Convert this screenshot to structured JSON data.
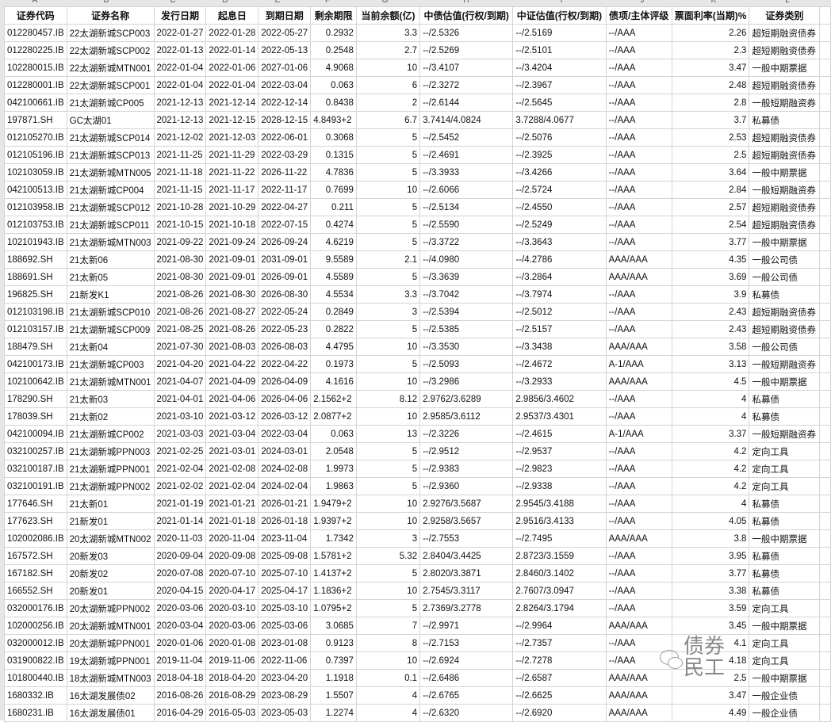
{
  "column_letters": [
    "A",
    "B",
    "C",
    "D",
    "E",
    "F",
    "G",
    "H",
    "I",
    "J",
    "K",
    "L"
  ],
  "headers": [
    "证券代码",
    "证券名称",
    "发行日期",
    "起息日",
    "到期日期",
    "剩余期限",
    "当前余额(亿)",
    "中债估值(行权/到期)",
    "中证估值(行权/到期)",
    "债项/主体评级",
    "票面利率(当期)%",
    "证券类别"
  ],
  "rows": [
    [
      "012280457.IB",
      "22太湖新城SCP003",
      "2022-01-27",
      "2022-01-28",
      "2022-05-27",
      "0.2932",
      "3.3",
      "--/2.5326",
      "--/2.5169",
      "--/AAA",
      "2.26",
      "超短期融资债券"
    ],
    [
      "012280225.IB",
      "22太湖新城SCP002",
      "2022-01-13",
      "2022-01-14",
      "2022-05-13",
      "0.2548",
      "2.7",
      "--/2.5269",
      "--/2.5101",
      "--/AAA",
      "2.3",
      "超短期融资债券"
    ],
    [
      "102280015.IB",
      "22太湖新城MTN001",
      "2022-01-04",
      "2022-01-06",
      "2027-01-06",
      "4.9068",
      "10",
      "--/3.4107",
      "--/3.4204",
      "--/AAA",
      "3.47",
      "一般中期票据"
    ],
    [
      "012280001.IB",
      "22太湖新城SCP001",
      "2022-01-04",
      "2022-01-04",
      "2022-03-04",
      "0.063",
      "6",
      "--/2.3272",
      "--/2.3967",
      "--/AAA",
      "2.48",
      "超短期融资债券"
    ],
    [
      "042100661.IB",
      "21太湖新城CP005",
      "2021-12-13",
      "2021-12-14",
      "2022-12-14",
      "0.8438",
      "2",
      "--/2.6144",
      "--/2.5645",
      "--/AAA",
      "2.8",
      "一般短期融资券"
    ],
    [
      "197871.SH",
      "GC太湖01",
      "2021-12-13",
      "2021-12-15",
      "2028-12-15",
      "4.8493+2",
      "6.7",
      "3.7414/4.0824",
      "3.7288/4.0677",
      "--/AAA",
      "3.7",
      "私募债"
    ],
    [
      "012105270.IB",
      "21太湖新城SCP014",
      "2021-12-02",
      "2021-12-03",
      "2022-06-01",
      "0.3068",
      "5",
      "--/2.5452",
      "--/2.5076",
      "--/AAA",
      "2.53",
      "超短期融资债券"
    ],
    [
      "012105196.IB",
      "21太湖新城SCP013",
      "2021-11-25",
      "2021-11-29",
      "2022-03-29",
      "0.1315",
      "5",
      "--/2.4691",
      "--/2.3925",
      "--/AAA",
      "2.5",
      "超短期融资债券"
    ],
    [
      "102103059.IB",
      "21太湖新城MTN005",
      "2021-11-18",
      "2021-11-22",
      "2026-11-22",
      "4.7836",
      "5",
      "--/3.3933",
      "--/3.4266",
      "--/AAA",
      "3.64",
      "一般中期票据"
    ],
    [
      "042100513.IB",
      "21太湖新城CP004",
      "2021-11-15",
      "2021-11-17",
      "2022-11-17",
      "0.7699",
      "10",
      "--/2.6066",
      "--/2.5724",
      "--/AAA",
      "2.84",
      "一般短期融资券"
    ],
    [
      "012103958.IB",
      "21太湖新城SCP012",
      "2021-10-28",
      "2021-10-29",
      "2022-04-27",
      "0.211",
      "5",
      "--/2.5134",
      "--/2.4550",
      "--/AAA",
      "2.57",
      "超短期融资债券"
    ],
    [
      "012103753.IB",
      "21太湖新城SCP011",
      "2021-10-15",
      "2021-10-18",
      "2022-07-15",
      "0.4274",
      "5",
      "--/2.5590",
      "--/2.5249",
      "--/AAA",
      "2.54",
      "超短期融资债券"
    ],
    [
      "102101943.IB",
      "21太湖新城MTN003",
      "2021-09-22",
      "2021-09-24",
      "2026-09-24",
      "4.6219",
      "5",
      "--/3.3722",
      "--/3.3643",
      "--/AAA",
      "3.77",
      "一般中期票据"
    ],
    [
      "188692.SH",
      "21太新06",
      "2021-08-30",
      "2021-09-01",
      "2031-09-01",
      "9.5589",
      "2.1",
      "--/4.0980",
      "--/4.2786",
      "AAA/AAA",
      "4.35",
      "一般公司债"
    ],
    [
      "188691.SH",
      "21太新05",
      "2021-08-30",
      "2021-09-01",
      "2026-09-01",
      "4.5589",
      "5",
      "--/3.3639",
      "--/3.2864",
      "AAA/AAA",
      "3.69",
      "一般公司债"
    ],
    [
      "196825.SH",
      "21新发K1",
      "2021-08-26",
      "2021-08-30",
      "2026-08-30",
      "4.5534",
      "3.3",
      "--/3.7042",
      "--/3.7974",
      "--/AAA",
      "3.9",
      "私募债"
    ],
    [
      "012103198.IB",
      "21太湖新城SCP010",
      "2021-08-26",
      "2021-08-27",
      "2022-05-24",
      "0.2849",
      "3",
      "--/2.5394",
      "--/2.5012",
      "--/AAA",
      "2.43",
      "超短期融资债券"
    ],
    [
      "012103157.IB",
      "21太湖新城SCP009",
      "2021-08-25",
      "2021-08-26",
      "2022-05-23",
      "0.2822",
      "5",
      "--/2.5385",
      "--/2.5157",
      "--/AAA",
      "2.43",
      "超短期融资债券"
    ],
    [
      "188479.SH",
      "21太新04",
      "2021-07-30",
      "2021-08-03",
      "2026-08-03",
      "4.4795",
      "10",
      "--/3.3530",
      "--/3.3438",
      "AAA/AAA",
      "3.58",
      "一般公司债"
    ],
    [
      "042100173.IB",
      "21太湖新城CP003",
      "2021-04-20",
      "2021-04-22",
      "2022-04-22",
      "0.1973",
      "5",
      "--/2.5093",
      "--/2.4672",
      "A-1/AAA",
      "3.13",
      "一般短期融资券"
    ],
    [
      "102100642.IB",
      "21太湖新城MTN001",
      "2021-04-07",
      "2021-04-09",
      "2026-04-09",
      "4.1616",
      "10",
      "--/3.2986",
      "--/3.2933",
      "AAA/AAA",
      "4.5",
      "一般中期票据"
    ],
    [
      "178290.SH",
      "21太新03",
      "2021-04-01",
      "2021-04-06",
      "2026-04-06",
      "2.1562+2",
      "8.12",
      "2.9762/3.6289",
      "2.9856/3.4602",
      "--/AAA",
      "4",
      "私募债"
    ],
    [
      "178039.SH",
      "21太新02",
      "2021-03-10",
      "2021-03-12",
      "2026-03-12",
      "2.0877+2",
      "10",
      "2.9585/3.6112",
      "2.9537/3.4301",
      "--/AAA",
      "4",
      "私募债"
    ],
    [
      "042100094.IB",
      "21太湖新城CP002",
      "2021-03-03",
      "2021-03-04",
      "2022-03-04",
      "0.063",
      "13",
      "--/2.3226",
      "--/2.4615",
      "A-1/AAA",
      "3.37",
      "一般短期融资券"
    ],
    [
      "032100257.IB",
      "21太湖新城PPN003",
      "2021-02-25",
      "2021-03-01",
      "2024-03-01",
      "2.0548",
      "5",
      "--/2.9512",
      "--/2.9537",
      "--/AAA",
      "4.2",
      "定向工具"
    ],
    [
      "032100187.IB",
      "21太湖新城PPN001",
      "2021-02-04",
      "2021-02-08",
      "2024-02-08",
      "1.9973",
      "5",
      "--/2.9383",
      "--/2.9823",
      "--/AAA",
      "4.2",
      "定向工具"
    ],
    [
      "032100191.IB",
      "21太湖新城PPN002",
      "2021-02-02",
      "2021-02-04",
      "2024-02-04",
      "1.9863",
      "5",
      "--/2.9360",
      "--/2.9338",
      "--/AAA",
      "4.2",
      "定向工具"
    ],
    [
      "177646.SH",
      "21太新01",
      "2021-01-19",
      "2021-01-21",
      "2026-01-21",
      "1.9479+2",
      "10",
      "2.9276/3.5687",
      "2.9545/3.4188",
      "--/AAA",
      "4",
      "私募债"
    ],
    [
      "177623.SH",
      "21新发01",
      "2021-01-14",
      "2021-01-18",
      "2026-01-18",
      "1.9397+2",
      "10",
      "2.9258/3.5657",
      "2.9516/3.4133",
      "--/AAA",
      "4.05",
      "私募债"
    ],
    [
      "102002086.IB",
      "20太湖新城MTN002",
      "2020-11-03",
      "2020-11-04",
      "2023-11-04",
      "1.7342",
      "3",
      "--/2.7553",
      "--/2.7495",
      "AAA/AAA",
      "3.8",
      "一般中期票据"
    ],
    [
      "167572.SH",
      "20新发03",
      "2020-09-04",
      "2020-09-08",
      "2025-09-08",
      "1.5781+2",
      "5.32",
      "2.8404/3.4425",
      "2.8723/3.1559",
      "--/AAA",
      "3.95",
      "私募债"
    ],
    [
      "167182.SH",
      "20新发02",
      "2020-07-08",
      "2020-07-10",
      "2025-07-10",
      "1.4137+2",
      "5",
      "2.8020/3.3871",
      "2.8460/3.1402",
      "--/AAA",
      "3.77",
      "私募债"
    ],
    [
      "166552.SH",
      "20新发01",
      "2020-04-15",
      "2020-04-17",
      "2025-04-17",
      "1.1836+2",
      "10",
      "2.7545/3.3117",
      "2.7607/3.0947",
      "--/AAA",
      "3.38",
      "私募债"
    ],
    [
      "032000176.IB",
      "20太湖新城PPN002",
      "2020-03-06",
      "2020-03-10",
      "2025-03-10",
      "1.0795+2",
      "5",
      "2.7369/3.2778",
      "2.8264/3.1794",
      "--/AAA",
      "3.59",
      "定向工具"
    ],
    [
      "102000256.IB",
      "20太湖新城MTN001",
      "2020-03-04",
      "2020-03-06",
      "2025-03-06",
      "3.0685",
      "7",
      "--/2.9971",
      "--/2.9964",
      "AAA/AAA",
      "3.45",
      "一般中期票据"
    ],
    [
      "032000012.IB",
      "20太湖新城PPN001",
      "2020-01-06",
      "2020-01-08",
      "2023-01-08",
      "0.9123",
      "8",
      "--/2.7153",
      "--/2.7357",
      "--/AAA",
      "4.1",
      "定向工具"
    ],
    [
      "031900822.IB",
      "19太湖新城PPN001",
      "2019-11-04",
      "2019-11-06",
      "2022-11-06",
      "0.7397",
      "10",
      "--/2.6924",
      "--/2.7278",
      "--/AAA",
      "4.18",
      "定向工具"
    ],
    [
      "101800440.IB",
      "18太湖新城MTN003",
      "2018-04-18",
      "2018-04-20",
      "2023-04-20",
      "1.1918",
      "0.1",
      "--/2.6486",
      "--/2.6587",
      "AAA/AAA",
      "2.5",
      "一般中期票据"
    ],
    [
      "1680332.IB",
      "16太湖发展债02",
      "2016-08-26",
      "2016-08-29",
      "2023-08-29",
      "1.5507",
      "4",
      "--/2.6765",
      "--/2.6625",
      "AAA/AAA",
      "3.47",
      "一般企业债"
    ],
    [
      "1680231.IB",
      "16太湖发展债01",
      "2016-04-29",
      "2016-05-03",
      "2023-05-03",
      "1.2274",
      "4",
      "--/2.6320",
      "--/2.6920",
      "AAA/AAA",
      "4.49",
      "一般企业债"
    ]
  ],
  "watermark": {
    "text": "债券民工",
    "icon": "wechat-icon"
  }
}
